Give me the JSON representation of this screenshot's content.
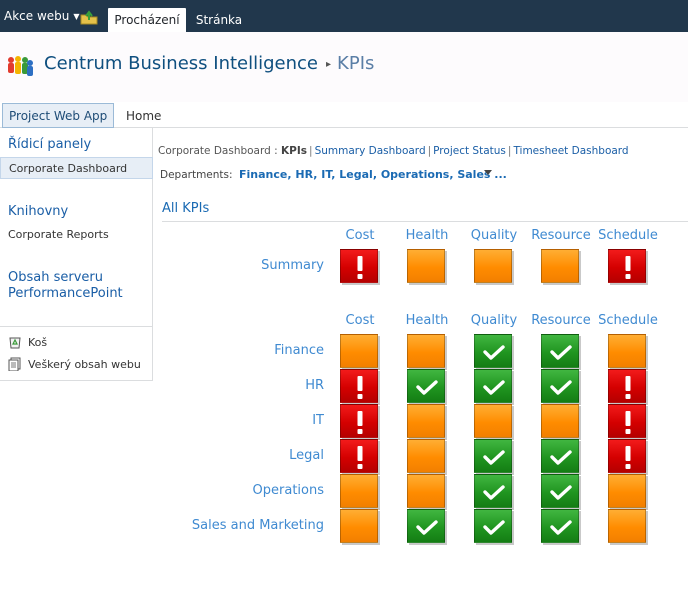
{
  "ribbon": {
    "site_actions": "Akce webu",
    "tabs": [
      {
        "label": "Procházení",
        "active": true
      },
      {
        "label": "Stránka",
        "active": false
      }
    ]
  },
  "title": {
    "site": "Centrum Business Intelligence",
    "page": "KPIs"
  },
  "topnav": {
    "items": [
      "Project Web App",
      "Home"
    ]
  },
  "leftnav": {
    "dashboards_heading": "Řídicí panely",
    "dashboards_item": "Corporate Dashboard",
    "libraries_heading": "Knihovny",
    "libraries_item": "Corporate Reports",
    "server_heading_1": "Obsah serveru",
    "server_heading_2": "PerformancePoint",
    "tools": [
      "Koš",
      "Veškerý obsah webu"
    ]
  },
  "breadcrumb": {
    "prefix": "Corporate Dashboard :",
    "current": "KPIs",
    "links": [
      "Summary Dashboard",
      "Project Status",
      "Timesheet Dashboard"
    ]
  },
  "filter": {
    "label": "Departments:",
    "value": "Finance, HR, IT, Legal, Operations, Sales ..."
  },
  "kpi": {
    "heading": "All KPIs",
    "columns": [
      "Cost",
      "Health",
      "Quality",
      "Resource",
      "Schedule"
    ],
    "summary": {
      "label": "Summary",
      "status": [
        "red",
        "orange",
        "orange",
        "orange",
        "red"
      ]
    },
    "rows": [
      {
        "label": "Finance",
        "status": [
          "orange",
          "orange",
          "green",
          "green",
          "orange"
        ]
      },
      {
        "label": "HR",
        "status": [
          "red",
          "green",
          "green",
          "green",
          "red"
        ]
      },
      {
        "label": "IT",
        "status": [
          "red",
          "orange",
          "orange",
          "orange",
          "red"
        ]
      },
      {
        "label": "Legal",
        "status": [
          "red",
          "orange",
          "green",
          "green",
          "red"
        ]
      },
      {
        "label": "Operations",
        "status": [
          "orange",
          "orange",
          "green",
          "green",
          "orange"
        ]
      },
      {
        "label": "Sales and Marketing",
        "status": [
          "orange",
          "green",
          "green",
          "green",
          "orange"
        ]
      }
    ],
    "colors": {
      "red": "#d40000",
      "orange": "#ff8c00",
      "green": "#209520"
    }
  }
}
